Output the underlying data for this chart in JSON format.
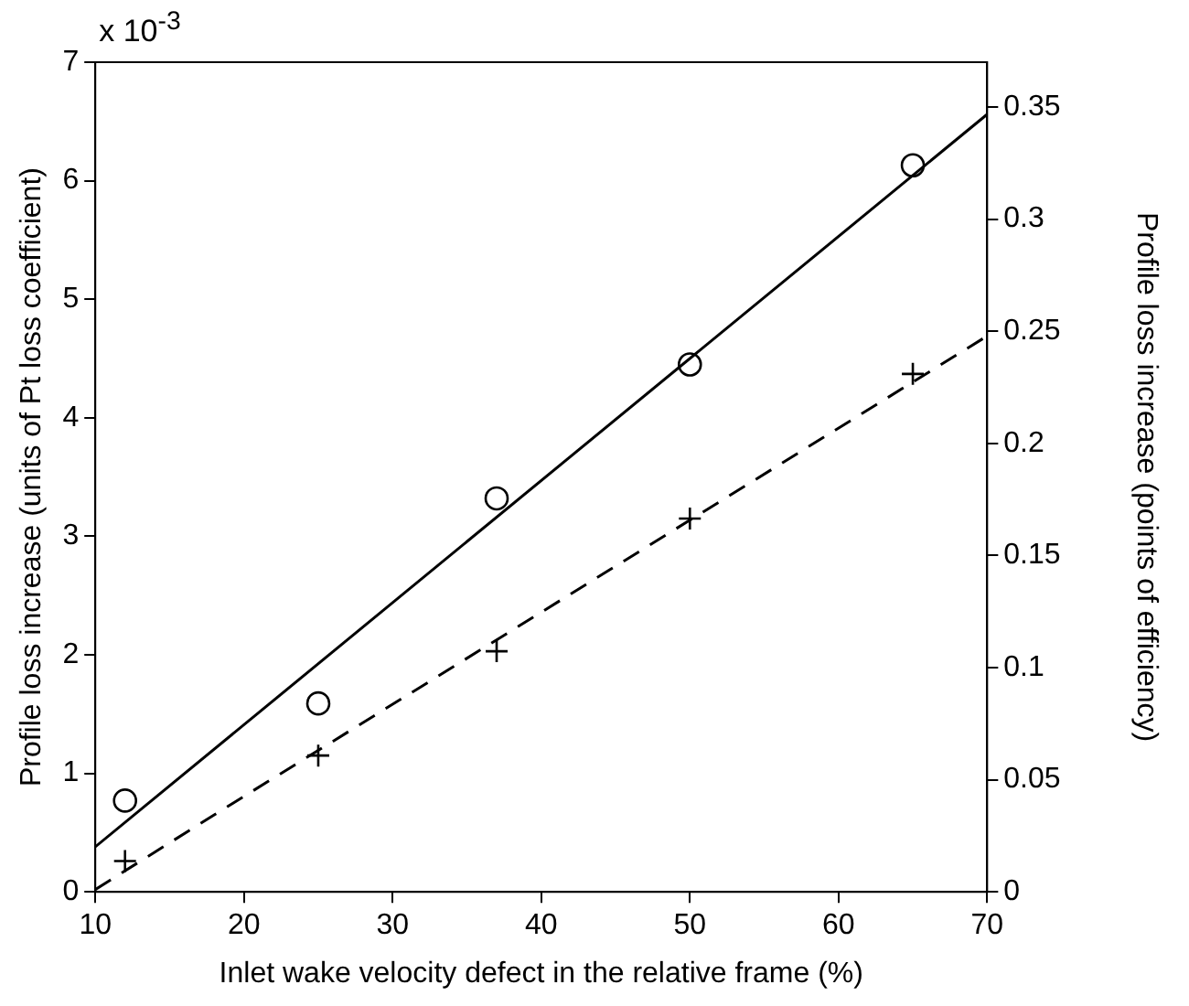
{
  "chart_data": {
    "type": "scatter",
    "xlabel": "Inlet wake velocity defect in the relative frame (%)",
    "ylabel": "Profile loss increase (units of Pt loss coefficient)",
    "y2label": "Profile loss increase (points of efficiency)",
    "annotations": [
      "x 10$^{-3}$"
    ],
    "xlim": [
      10,
      70
    ],
    "xticks": [
      10,
      20,
      30,
      40,
      50,
      60,
      70
    ],
    "ylim": [
      0,
      7
    ],
    "yticks": [
      0,
      1,
      2,
      3,
      4,
      5,
      6,
      7
    ],
    "y2lim": [
      0,
      0.37
    ],
    "y2ticks": [
      0,
      0.05,
      0.1,
      0.15,
      0.2,
      0.25,
      0.3,
      0.35
    ],
    "grid": false,
    "legend": false,
    "series": [
      {
        "type": "scatter",
        "marker": "circle",
        "color": "#000000",
        "x": [
          12,
          25,
          37,
          50,
          65
        ],
        "values": [
          0.77,
          1.59,
          3.32,
          4.45,
          6.13
        ]
      },
      {
        "type": "scatter",
        "marker": "cross",
        "color": "#000000",
        "x": [
          12,
          25,
          37,
          50,
          65
        ],
        "values": [
          0.26,
          1.15,
          2.03,
          3.15,
          4.37
        ]
      },
      {
        "type": "line",
        "marker": "none",
        "line_style": "solid",
        "color": "#000000",
        "x": [
          10,
          70
        ],
        "values": [
          0.38,
          6.56
        ]
      },
      {
        "type": "line",
        "marker": "none",
        "line_style": "dashed",
        "color": "#000000",
        "x": [
          10,
          18,
          70
        ],
        "values": [
          0.02,
          0.65,
          4.69
        ]
      }
    ]
  }
}
